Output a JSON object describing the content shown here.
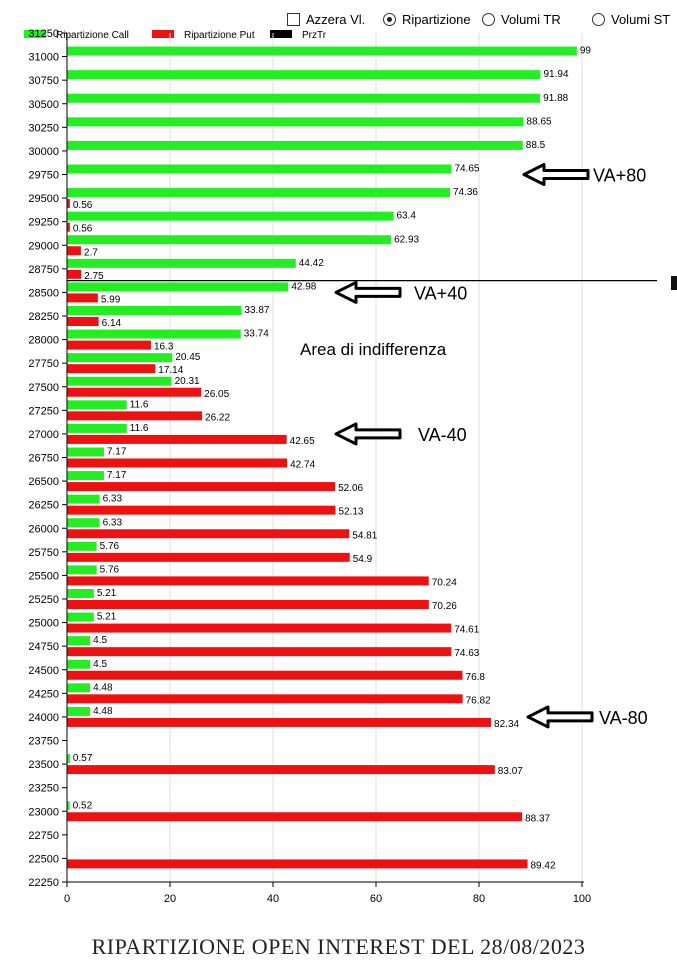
{
  "controls": {
    "options": [
      {
        "label": "Azzera Vl.",
        "kind": "checkbox",
        "checked": false
      },
      {
        "label": "Ripartizione",
        "kind": "radio",
        "checked": true
      },
      {
        "label": "Volumi TR",
        "kind": "radio",
        "checked": false
      },
      {
        "label": "Volumi ST",
        "kind": "radio",
        "checked": false
      }
    ]
  },
  "footer": {
    "title": "RIPARTIZIONE OPEN INTEREST DEL 28/08/2023"
  },
  "chart_data": {
    "type": "bar",
    "orientation": "horizontal",
    "title": "",
    "xlabel": "",
    "ylabel": "",
    "xlim": [
      0,
      100
    ],
    "x_ticks": [
      "0",
      "20",
      "40",
      "60",
      "80",
      "100"
    ],
    "ylim": [
      22250,
      31250
    ],
    "y_tick_labels": [
      "31250",
      "31000",
      "30750",
      "30500",
      "30250",
      "30000",
      "29750",
      "29500",
      "29250",
      "29000",
      "28750",
      "28500",
      "28250",
      "28000",
      "27750",
      "27500",
      "27250",
      "27000",
      "26750",
      "26500",
      "26250",
      "26000",
      "25750",
      "25500",
      "25250",
      "25000",
      "24750",
      "24500",
      "24250",
      "24000",
      "23750",
      "23500",
      "23250",
      "23000",
      "22750",
      "22500",
      "22250"
    ],
    "grid": "vertical",
    "legend_position": "top-left",
    "colors": {
      "call": "#22ee22",
      "put": "#ee1111",
      "prz": "#000000"
    },
    "legend": [
      {
        "label": "Ripartizione Call",
        "color": "#22ee22"
      },
      {
        "label": "Ripartizione Put",
        "color": "#ee1111"
      },
      {
        "label": "PrzTr",
        "color": "#000000"
      }
    ],
    "strikes": [
      31000,
      30750,
      30500,
      30250,
      30000,
      29750,
      29500,
      29250,
      29000,
      28750,
      28500,
      28250,
      28000,
      27750,
      27500,
      27250,
      27000,
      26750,
      26500,
      26250,
      26000,
      25750,
      25500,
      25250,
      25000,
      24750,
      24500,
      24250,
      24000,
      23500,
      23000,
      22500
    ],
    "series": [
      {
        "name": "Ripartizione Call",
        "values": [
          99,
          91.94,
          91.88,
          88.65,
          88.5,
          74.65,
          74.36,
          63.4,
          62.93,
          44.42,
          42.98,
          33.87,
          33.74,
          20.45,
          20.31,
          11.6,
          11.6,
          7.17,
          7.17,
          6.33,
          6.33,
          5.76,
          5.76,
          5.21,
          5.21,
          4.5,
          4.5,
          4.48,
          4.48,
          0.57,
          0.52,
          null
        ],
        "labels": [
          "99",
          "91.94",
          "91.88",
          "88.65",
          "88.5",
          "74.65",
          "74.36",
          "63.4",
          "62.93",
          "44.42",
          "42.98",
          "33.87",
          "33.74",
          "20.45",
          "20.31",
          "11.6",
          "11.6",
          "7.17",
          "7.17",
          "6.33",
          "6.33",
          "5.76",
          "5.76",
          "5.21",
          "5.21",
          "4.5",
          "4.5",
          "4.48",
          "4.48",
          "0.57",
          "0.52",
          ""
        ]
      },
      {
        "name": "Ripartizione Put",
        "values": [
          null,
          null,
          null,
          null,
          null,
          null,
          0.56,
          0.56,
          2.7,
          2.75,
          5.99,
          6.14,
          16.3,
          17.14,
          26.05,
          26.22,
          42.65,
          42.74,
          52.06,
          52.13,
          54.81,
          54.9,
          70.24,
          70.26,
          74.61,
          74.63,
          76.8,
          76.82,
          82.34,
          83.07,
          88.37,
          89.42
        ],
        "labels": [
          "",
          "",
          "",
          "",
          "",
          "",
          "0.56",
          "0.56",
          "2.7",
          "2.75",
          "5.99",
          "6.14",
          "16.3",
          "17.14",
          "26.05",
          "26.22",
          "42.65",
          "42.74",
          "52.06",
          "52.13",
          "54.81",
          "54.9",
          "70.24",
          "70.26",
          "74.61",
          "74.63",
          "76.8",
          "76.82",
          "82.34",
          "83.07",
          "88.37",
          "89.42"
        ]
      }
    ],
    "price_line": {
      "label": "PrzTr",
      "y": 28625
    },
    "annotations": [
      {
        "text": "VA+80",
        "strike": 29750,
        "arrow": true
      },
      {
        "text": "VA+40",
        "strike": 28500,
        "arrow": true
      },
      {
        "text": "Area di indifferenza",
        "strike": 27750,
        "arrow": false
      },
      {
        "text": "VA-40",
        "strike": 27000,
        "arrow": true
      },
      {
        "text": "VA-80",
        "strike": 24000,
        "arrow": true
      }
    ]
  }
}
